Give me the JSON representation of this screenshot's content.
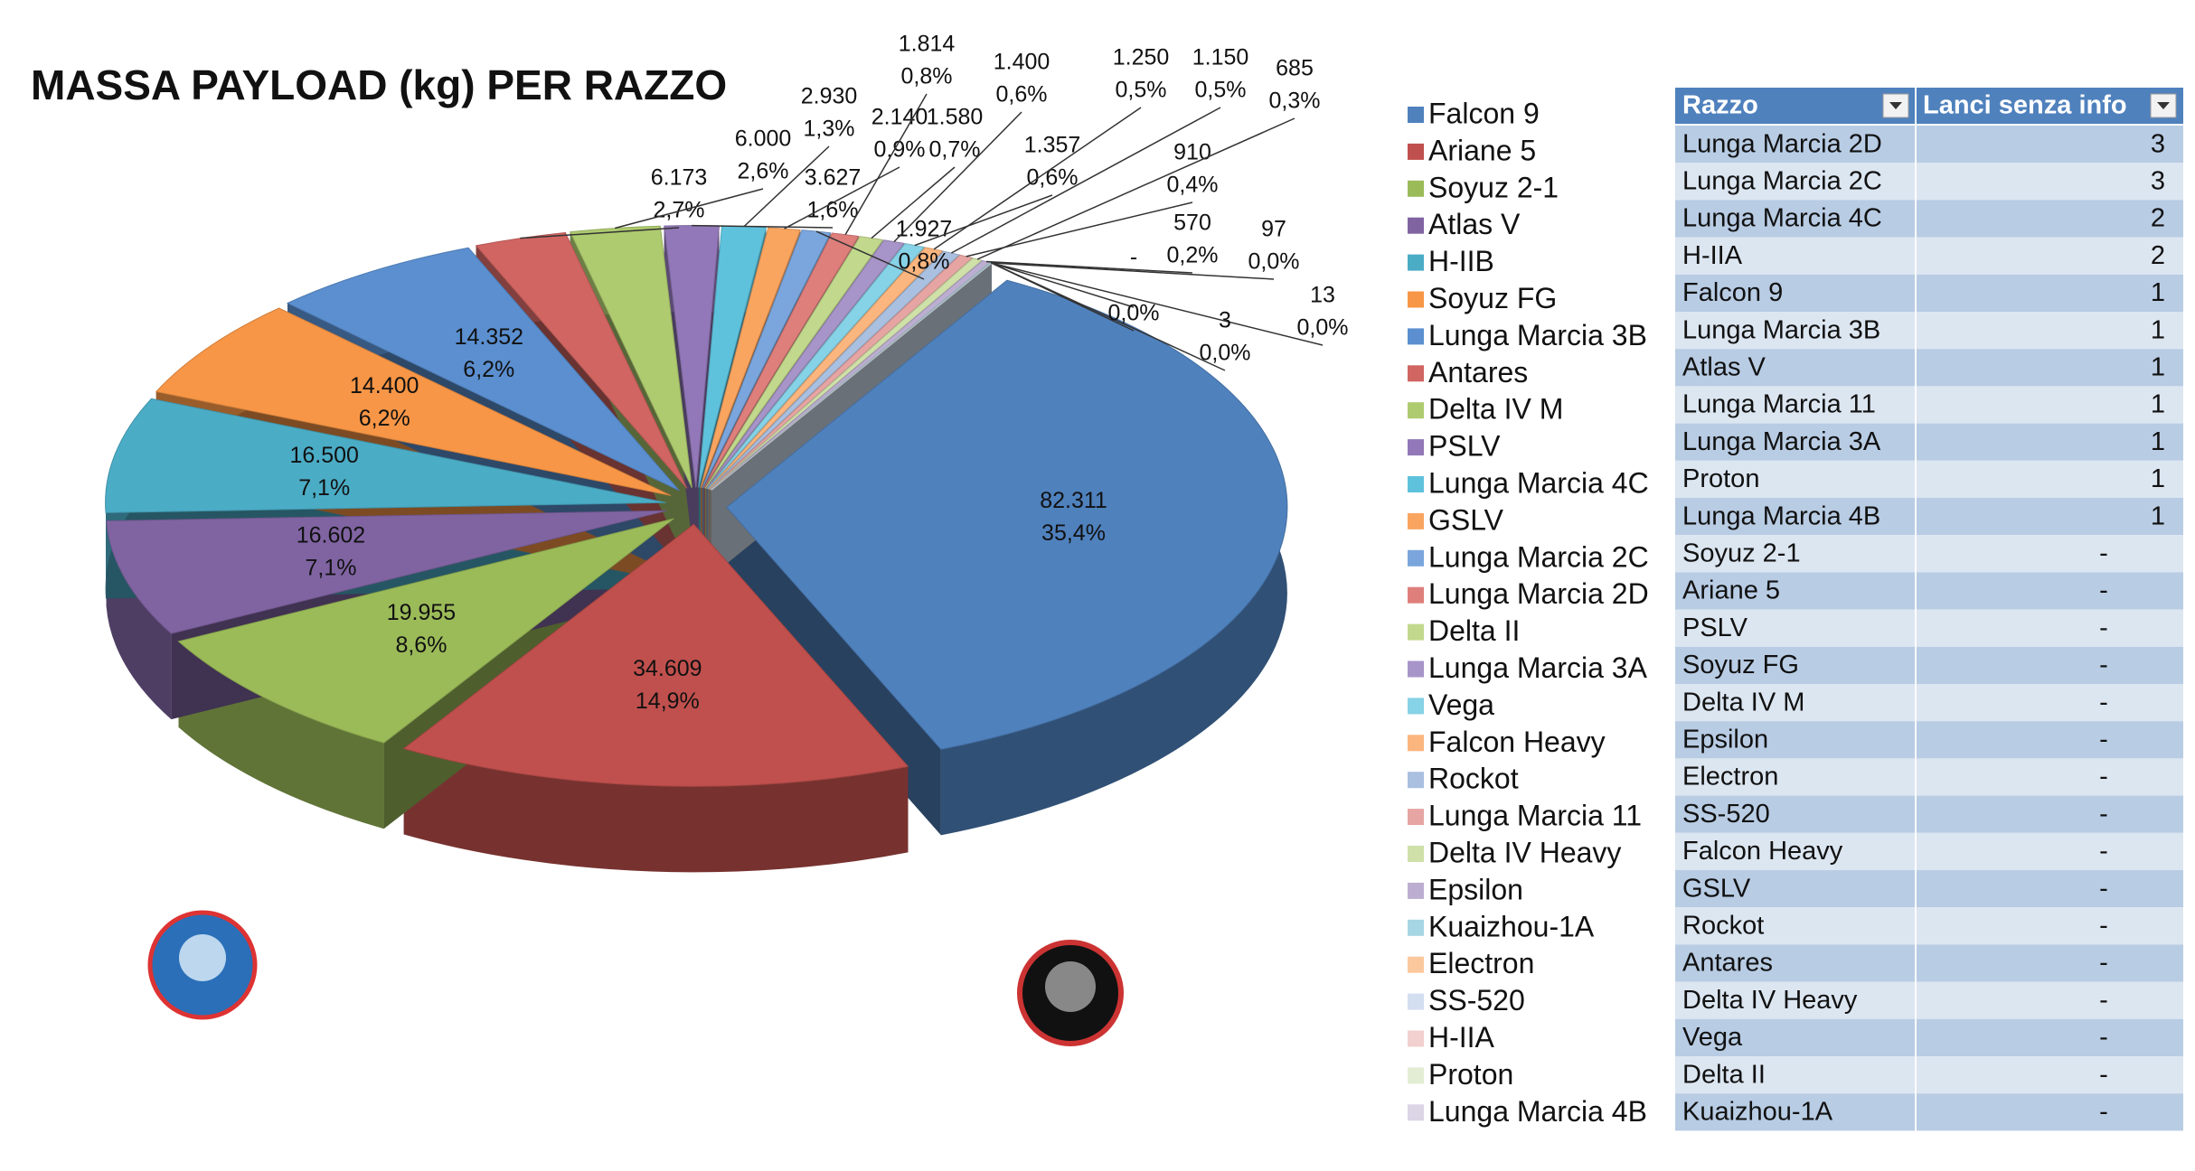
{
  "chart_data": {
    "type": "pie",
    "title": "MASSA PAYLOAD (kg) PER RAZZO",
    "categories": [
      "Falcon 9",
      "Ariane 5",
      "Soyuz 2-1",
      "Atlas V",
      "H-IIB",
      "Soyuz FG",
      "Lunga Marcia 3B",
      "Antares",
      "Delta IV M",
      "PSLV",
      "Lunga Marcia 4C",
      "GSLV",
      "Lunga Marcia 2C",
      "Lunga Marcia 2D",
      "Delta II",
      "Lunga Marcia 3A",
      "Vega",
      "Falcon Heavy",
      "Rockot",
      "Lunga Marcia 11",
      "Delta IV Heavy",
      "Epsilon",
      "Kuaizhou-1A",
      "Electron",
      "SS-520",
      "H-IIA",
      "Proton",
      "Lunga Marcia 4B"
    ],
    "values": [
      82311,
      34609,
      19955,
      16602,
      16500,
      14400,
      14352,
      6173,
      6000,
      3627,
      2930,
      2140,
      1927,
      1814,
      1580,
      1400,
      1357,
      1250,
      1150,
      910,
      685,
      570,
      97,
      13,
      3,
      0,
      0,
      0
    ],
    "value_labels": [
      "82.311",
      "34.609",
      "19.955",
      "16.602",
      "16.500",
      "14.400",
      "14.352",
      "6.173",
      "6.000",
      "3.627",
      "2.930",
      "2.140",
      "1.927",
      "1.814",
      "1.580",
      "1.400",
      "1.357",
      "1.250",
      "1.150",
      "910",
      "685",
      "570",
      "97",
      "13",
      "3",
      "-",
      null,
      null
    ],
    "percent_labels": [
      "35,4%",
      "14,9%",
      "8,6%",
      "7,1%",
      "7,1%",
      "6,2%",
      "6,2%",
      "2,7%",
      "2,6%",
      "1,6%",
      "1,3%",
      "0,9%",
      "0,8%",
      "0,8%",
      "0,7%",
      "0,6%",
      "0,6%",
      "0,5%",
      "0,5%",
      "0,4%",
      "0,3%",
      "0,2%",
      "0,0%",
      "0,0%",
      "0,0%",
      null,
      "0,0%",
      null
    ],
    "colors": [
      "#4f81bd",
      "#c0504d",
      "#9bbb59",
      "#8064a2",
      "#4bacc6",
      "#f79646",
      "#5b8fd0",
      "#d06562",
      "#aecb6f",
      "#9278b8",
      "#5fc2dc",
      "#f9a560",
      "#7aa6dd",
      "#de7f7c",
      "#c2d98d",
      "#a794c8",
      "#86d2e6",
      "#fbb57e",
      "#a9c0e0",
      "#e6a5a3",
      "#cfe0a8",
      "#bcaed0",
      "#a6d6e3",
      "#fbc89d",
      "#d3dff0",
      "#f2d0cf",
      "#e3edd3",
      "#dcd5e6"
    ]
  },
  "table": {
    "header": [
      "Razzo",
      "Lanci senza info"
    ],
    "rows": [
      [
        "Lunga Marcia 2D",
        3
      ],
      [
        "Lunga Marcia 2C",
        3
      ],
      [
        "Lunga Marcia 4C",
        2
      ],
      [
        "H-IIA",
        2
      ],
      [
        "Falcon 9",
        1
      ],
      [
        "Lunga Marcia 3B",
        1
      ],
      [
        "Atlas V",
        1
      ],
      [
        "Lunga Marcia 11",
        1
      ],
      [
        "Lunga Marcia 3A",
        1
      ],
      [
        "Proton",
        1
      ],
      [
        "Lunga Marcia 4B",
        1
      ],
      [
        "Soyuz 2-1",
        "-"
      ],
      [
        "Ariane 5",
        "-"
      ],
      [
        "PSLV",
        "-"
      ],
      [
        "Soyuz FG",
        "-"
      ],
      [
        "Delta IV M",
        "-"
      ],
      [
        "Epsilon",
        "-"
      ],
      [
        "Electron",
        "-"
      ],
      [
        "SS-520",
        "-"
      ],
      [
        "Falcon Heavy",
        "-"
      ],
      [
        "GSLV",
        "-"
      ],
      [
        "Rockot",
        "-"
      ],
      [
        "Antares",
        "-"
      ],
      [
        "Delta IV Heavy",
        "-"
      ],
      [
        "Vega",
        "-"
      ],
      [
        "Delta II",
        "-"
      ],
      [
        "Kuaizhou-1A",
        "-"
      ]
    ]
  }
}
